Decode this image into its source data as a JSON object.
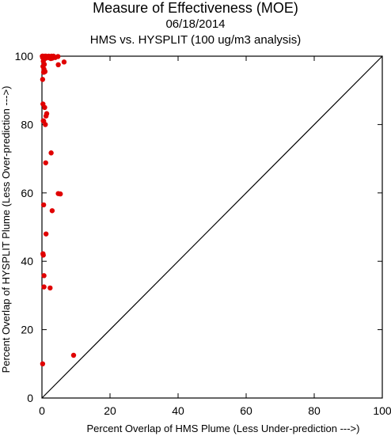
{
  "title": "Measure of Effectiveness (MOE)",
  "date": "06/18/2014",
  "subtitle": "HMS vs. HYSPLIT  (100 ug/m3 analysis)",
  "colors": {
    "points": "#e00000",
    "axes": "#000000",
    "diagonal": "#000000"
  },
  "chart_data": {
    "type": "scatter",
    "title": "Measure of Effectiveness (MOE)",
    "subtitle": "HMS vs. HYSPLIT  (100 ug/m3 analysis)",
    "xlabel": "Percent Overlap of HMS Plume (Less Under-prediction --->)",
    "ylabel": "Percent Overlap of HYSPLIT Plume (Less Over-prediction --->)",
    "xlim": [
      0,
      100
    ],
    "ylim": [
      0,
      100
    ],
    "xticks": [
      0,
      20,
      40,
      60,
      80,
      100
    ],
    "yticks": [
      0,
      20,
      40,
      60,
      80,
      100
    ],
    "grid": false,
    "reference_line": {
      "from": [
        0,
        0
      ],
      "to": [
        100,
        100
      ]
    },
    "x": [
      0.1,
      0.3,
      0.6,
      0.9,
      1.2,
      1.6,
      2.0,
      2.4,
      2.8,
      3.1,
      3.4,
      3.9,
      4.7,
      0.2,
      0.5,
      0.8,
      1.1,
      1.5,
      2.2,
      2.6,
      3.0,
      0.4,
      0.7,
      0.3,
      0.6,
      0.5,
      4.8,
      6.5,
      0.9,
      0.2,
      0.3,
      0.8,
      0.5,
      1.4,
      1.2,
      1.0,
      0.4,
      2.7,
      1.1,
      4.8,
      5.4,
      0.5,
      3.0,
      1.2,
      0.3,
      0.4,
      0.6,
      0.6,
      2.4,
      9.3,
      0.2
    ],
    "y": [
      100,
      100,
      99.9,
      100,
      100,
      99.8,
      100,
      99.7,
      100,
      99.8,
      100,
      99.6,
      99.9,
      99.6,
      99.5,
      99.7,
      99.4,
      99.6,
      99.5,
      99.3,
      99.4,
      98.5,
      97.6,
      97.0,
      96.2,
      95.3,
      97.5,
      98.3,
      95.5,
      93.2,
      86.0,
      85.0,
      81.0,
      83.2,
      82.5,
      80.0,
      81.1,
      71.7,
      68.8,
      59.8,
      59.7,
      56.5,
      54.8,
      48.0,
      42.2,
      41.8,
      35.8,
      32.5,
      32.2,
      12.5,
      10.0
    ]
  }
}
